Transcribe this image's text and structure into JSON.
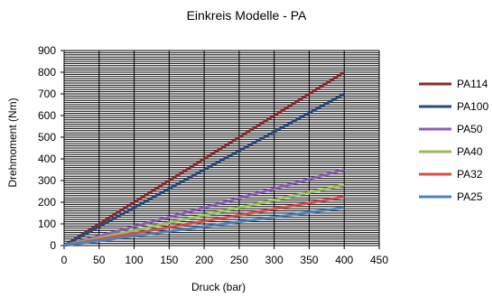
{
  "chart_data": {
    "type": "line",
    "title": "Einkreis Modelle - PA",
    "xlabel": "Druck (bar)",
    "ylabel": "Drehmoment (Nm)",
    "xlim": [
      0,
      450
    ],
    "ylim": [
      0,
      900
    ],
    "xticks": [
      0,
      50,
      100,
      150,
      200,
      250,
      300,
      350,
      400,
      450
    ],
    "yticks": [
      0,
      100,
      200,
      300,
      400,
      500,
      600,
      700,
      800,
      900
    ],
    "grid": true,
    "legend_position": "right",
    "series": [
      {
        "name": "PA114",
        "color": "#8b2a2a",
        "x": [
          0,
          400
        ],
        "y": [
          0,
          800
        ]
      },
      {
        "name": "PA100",
        "color": "#274a7a",
        "x": [
          0,
          400
        ],
        "y": [
          0,
          700
        ]
      },
      {
        "name": "PA50",
        "color": "#8e5fb5",
        "x": [
          0,
          400
        ],
        "y": [
          0,
          350
        ]
      },
      {
        "name": "PA40",
        "color": "#9bbb59",
        "x": [
          0,
          400
        ],
        "y": [
          0,
          280
        ]
      },
      {
        "name": "PA32",
        "color": "#d0504c",
        "x": [
          0,
          400
        ],
        "y": [
          0,
          225
        ]
      },
      {
        "name": "PA25",
        "color": "#4f81bd",
        "x": [
          0,
          400
        ],
        "y": [
          0,
          175
        ]
      }
    ]
  }
}
